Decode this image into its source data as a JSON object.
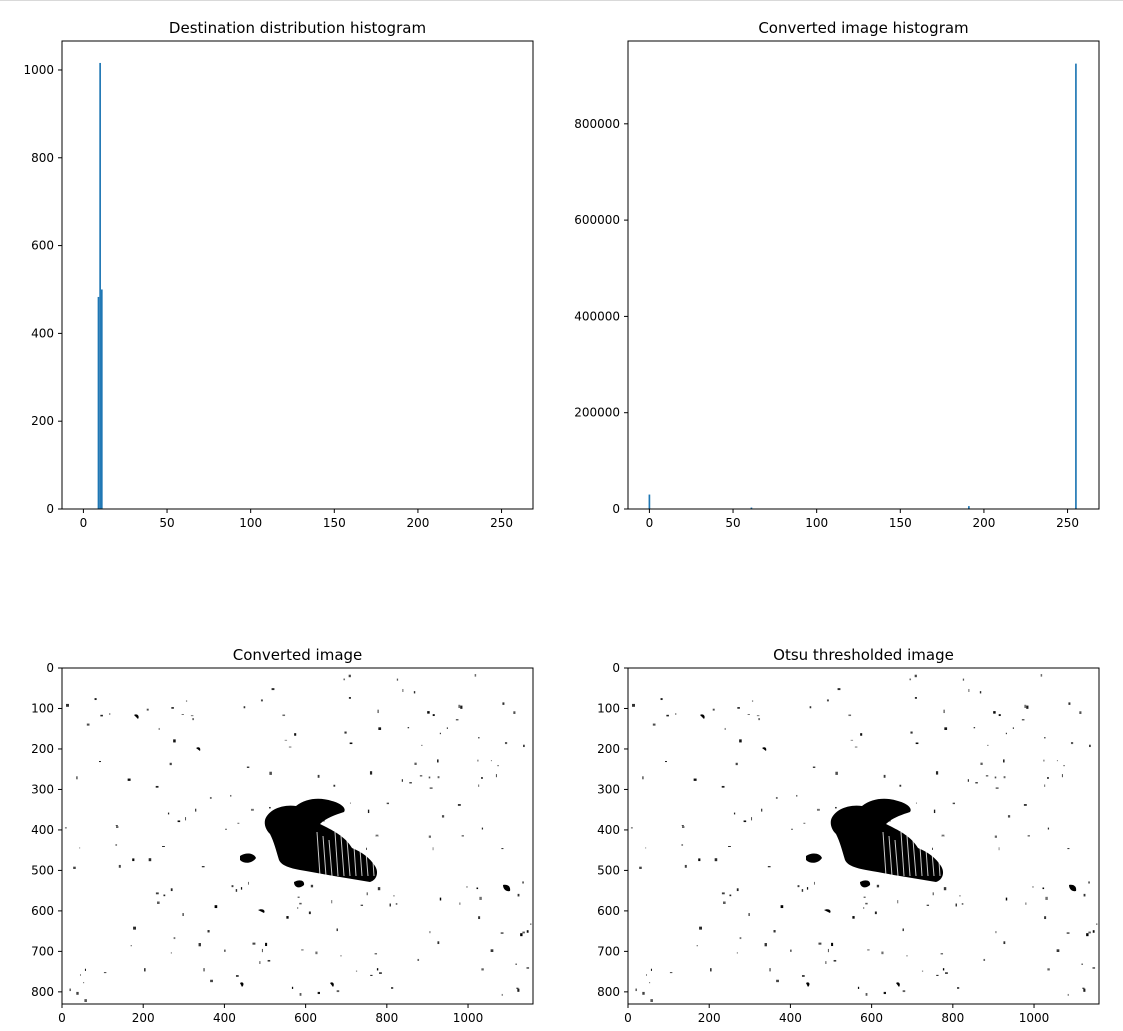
{
  "chart_data": [
    {
      "type": "bar",
      "title": "Destination distribution histogram",
      "xlabel": "",
      "ylabel": "",
      "xlim": [
        -12.8,
        268.8
      ],
      "ylim": [
        0,
        1066
      ],
      "xticks": [
        0,
        50,
        100,
        150,
        200,
        250
      ],
      "yticks": [
        0,
        200,
        400,
        600,
        800,
        1000
      ],
      "bar_width": 1,
      "color": "#1f77b4",
      "bins": [
        9,
        10,
        11
      ],
      "values": [
        483,
        1016,
        500
      ]
    },
    {
      "type": "bar",
      "title": "Converted image histogram",
      "xlabel": "",
      "ylabel": "",
      "xlim": [
        -12.8,
        268.8
      ],
      "ylim": [
        0,
        972000
      ],
      "xticks": [
        0,
        50,
        100,
        150,
        200,
        250
      ],
      "yticks": [
        0,
        200000,
        400000,
        600000,
        800000
      ],
      "bar_width": 1,
      "color": "#1f77b4",
      "bins": [
        0,
        61,
        191,
        255
      ],
      "values": [
        30000,
        3000,
        6000,
        925000
      ]
    },
    {
      "type": "image",
      "title": "Converted image",
      "xlim": [
        0,
        1160
      ],
      "ylim": [
        0,
        830
      ],
      "xticks": [
        0,
        200,
        400,
        600,
        800,
        1000
      ],
      "yticks": [
        0,
        100,
        200,
        300,
        400,
        500,
        600,
        700,
        800
      ]
    },
    {
      "type": "image",
      "title": "Otsu thresholded image",
      "xlim": [
        0,
        1160
      ],
      "ylim": [
        0,
        830
      ],
      "xticks": [
        0,
        200,
        400,
        600,
        800,
        1000
      ],
      "yticks": [
        0,
        100,
        200,
        300,
        400,
        500,
        600,
        700,
        800
      ]
    }
  ]
}
